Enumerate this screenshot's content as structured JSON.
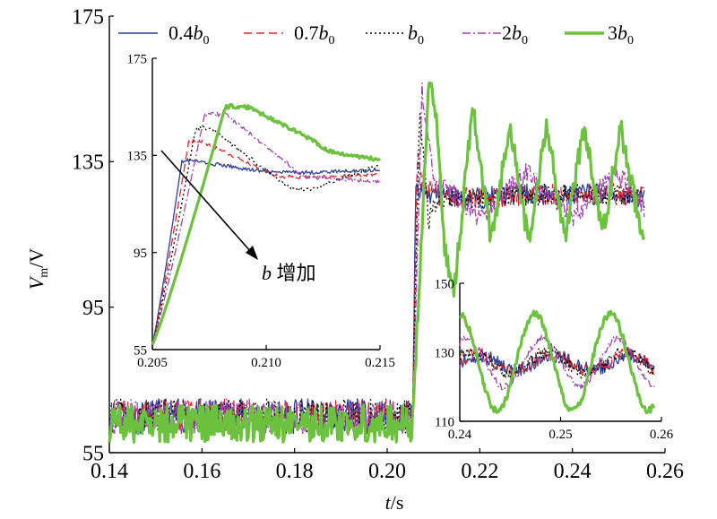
{
  "chart_data": [
    {
      "type": "line",
      "xlabel": "t/s",
      "ylabel": "V_m/V",
      "xlim": [
        0.14,
        0.26
      ],
      "ylim": [
        55,
        175
      ],
      "xticks": [
        "0.14",
        "0.16",
        "0.18",
        "0.20",
        "0.22",
        "0.24",
        "0.26"
      ],
      "yticks": [
        "55",
        "95",
        "135",
        "175"
      ],
      "legend_position": "top",
      "series": [
        {
          "name": "0.4b0",
          "color": "#2b3f9a",
          "style": "solid",
          "x": [
            0.14,
            0.17,
            0.2,
            0.2055,
            0.2062,
            0.207,
            0.21,
            0.22,
            0.23,
            0.24,
            0.25,
            0.2555
          ],
          "y": [
            65,
            65,
            65,
            65,
            128,
            126,
            126,
            125,
            126,
            126,
            126,
            125
          ]
        },
        {
          "name": "0.7b0",
          "color": "#d8282f",
          "style": "dash",
          "x": [
            0.14,
            0.17,
            0.2,
            0.2055,
            0.2065,
            0.208,
            0.21,
            0.22,
            0.23,
            0.24,
            0.25,
            0.2555
          ],
          "y": [
            65,
            65,
            65,
            65,
            138,
            128,
            126,
            125,
            126,
            126,
            126,
            125
          ]
        },
        {
          "name": "b0",
          "color": "#000000",
          "style": "dot",
          "x": [
            0.14,
            0.17,
            0.2,
            0.2055,
            0.207,
            0.209,
            0.21,
            0.22,
            0.23,
            0.24,
            0.25,
            0.2555
          ],
          "y": [
            65,
            65,
            65,
            65,
            148,
            118,
            124,
            125,
            126,
            126,
            126,
            125
          ]
        },
        {
          "name": "2b0",
          "color": "#a040b0",
          "style": "dashdot",
          "x": [
            0.14,
            0.17,
            0.2,
            0.2055,
            0.2075,
            0.209,
            0.21,
            0.22,
            0.23,
            0.24,
            0.25,
            0.2555
          ],
          "y": [
            65,
            65,
            65,
            65,
            155,
            140,
            130,
            120,
            132,
            120,
            132,
            122
          ]
        },
        {
          "name": "3b0",
          "color": "#6cc23f",
          "style": "solid-thick",
          "x": [
            0.14,
            0.17,
            0.2,
            0.2055,
            0.209,
            0.2105,
            0.2125,
            0.2145,
            0.2185,
            0.2225,
            0.2265,
            0.2305,
            0.2345,
            0.2385,
            0.2425,
            0.2465,
            0.2505,
            0.2545,
            0.2555
          ],
          "y": [
            63,
            63,
            63,
            63,
            157,
            148,
            110,
            100,
            150,
            113,
            146,
            113,
            145,
            113,
            145,
            115,
            144,
            118,
            116
          ]
        }
      ]
    },
    {
      "type": "line",
      "xlim": [
        0.205,
        0.215
      ],
      "ylim": [
        55,
        175
      ],
      "xticks": [
        "0.205",
        "0.210",
        "0.215"
      ],
      "yticks": [
        "55",
        "95",
        "135",
        "175"
      ],
      "annotation": {
        "text_italic": "b",
        "text": " 增加"
      }
    },
    {
      "type": "line",
      "xlim": [
        0.24,
        0.26
      ],
      "ylim": [
        110,
        150
      ],
      "xticks": [
        "0.24",
        "0.25",
        "0.26"
      ],
      "yticks": [
        "110",
        "130",
        "150"
      ]
    }
  ],
  "legend": {
    "items": [
      {
        "coef": "0.4",
        "sub": "0",
        "color": "#2b3f9a",
        "style": "solid"
      },
      {
        "coef": "0.7",
        "sub": "0",
        "color": "#d8282f",
        "style": "dash"
      },
      {
        "coef": "",
        "sub": "0",
        "color": "#000000",
        "style": "dot"
      },
      {
        "coef": "2",
        "sub": "0",
        "color": "#a040b0",
        "style": "dashdot"
      },
      {
        "coef": "3",
        "sub": "0",
        "color": "#6cc23f",
        "style": "solid-thick"
      }
    ],
    "symbol": "b"
  },
  "axis_text": {
    "ylabel_main": "V",
    "ylabel_sub": "m",
    "ylabel_unit": "/V",
    "xlabel_var": "t",
    "xlabel_unit": "/s"
  }
}
